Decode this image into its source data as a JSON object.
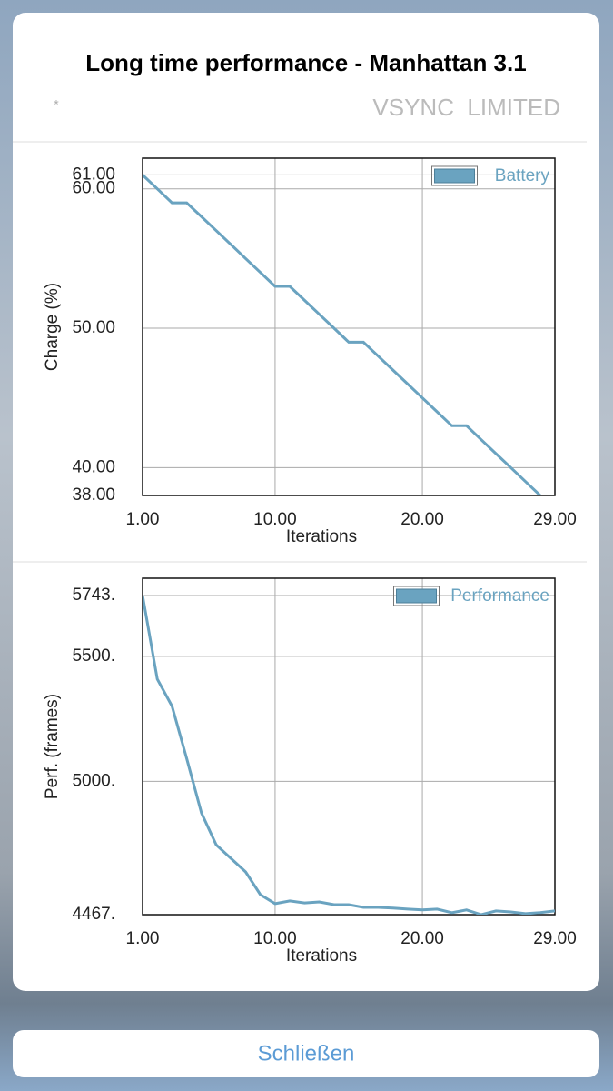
{
  "title": "Long time performance - Manhattan 3.1",
  "marker": "*",
  "status": "VSYNC_LIMITED",
  "button": "Schließen",
  "chart_data": [
    {
      "type": "line",
      "xlabel": "Iterations",
      "ylabel": "Charge (%)",
      "x": [
        1,
        2,
        3,
        4,
        5,
        6,
        7,
        8,
        9,
        10,
        11,
        12,
        13,
        14,
        15,
        16,
        17,
        18,
        19,
        20,
        21,
        22,
        23,
        24,
        25,
        26,
        27,
        28
      ],
      "series": [
        {
          "name": "Battery",
          "color": "#6aa3c0",
          "values": [
            61,
            60,
            59,
            59,
            58,
            57,
            56,
            55,
            54,
            53,
            53,
            52,
            51,
            50,
            49,
            49,
            48,
            47,
            46,
            45,
            44,
            43,
            43,
            42,
            41,
            40,
            39,
            38
          ]
        }
      ],
      "xlim": [
        1,
        29
      ],
      "xticks": [
        {
          "value": 1,
          "label": "1.00"
        },
        {
          "value": 10,
          "label": "10.00"
        },
        {
          "value": 20,
          "label": "20.00"
        },
        {
          "value": 29,
          "label": "29.00"
        }
      ],
      "ylim": [
        38,
        62.2
      ],
      "yticks": [
        {
          "value": 61,
          "label": "61.00"
        },
        {
          "value": 60,
          "label": "60.00"
        },
        {
          "value": 50,
          "label": "50.00"
        },
        {
          "value": 40,
          "label": "40.00"
        },
        {
          "value": 38,
          "label": "38.00"
        }
      ],
      "grid": true,
      "legend": "upper right"
    },
    {
      "type": "line",
      "xlabel": "Iterations",
      "ylabel": "Perf. (frames)",
      "x": [
        1,
        2,
        3,
        4,
        5,
        6,
        7,
        8,
        9,
        10,
        11,
        12,
        13,
        14,
        15,
        16,
        17,
        18,
        19,
        20,
        21,
        22,
        23,
        24,
        25,
        26,
        27,
        28,
        29
      ],
      "series": [
        {
          "name": "Performance",
          "color": "#6aa3c0",
          "values": [
            5743,
            5409,
            5301,
            5091,
            4873,
            4746,
            4692,
            4638,
            4547,
            4511,
            4522,
            4514,
            4518,
            4507,
            4507,
            4496,
            4496,
            4493,
            4489,
            4486,
            4489,
            4475,
            4486,
            4467,
            4482,
            4478,
            4471,
            4475,
            4482
          ]
        }
      ],
      "xlim": [
        1,
        29
      ],
      "xticks": [
        {
          "value": 1,
          "label": "1.00"
        },
        {
          "value": 10,
          "label": "10.00"
        },
        {
          "value": 20,
          "label": "20.00"
        },
        {
          "value": 29,
          "label": "29.00"
        }
      ],
      "ylim": [
        4467,
        5812
      ],
      "yticks": [
        {
          "value": 5743,
          "label": "5743."
        },
        {
          "value": 5500,
          "label": "5500."
        },
        {
          "value": 5000,
          "label": "5000."
        },
        {
          "value": 4467,
          "label": "4467."
        }
      ],
      "grid": true,
      "legend": "upper right"
    }
  ]
}
